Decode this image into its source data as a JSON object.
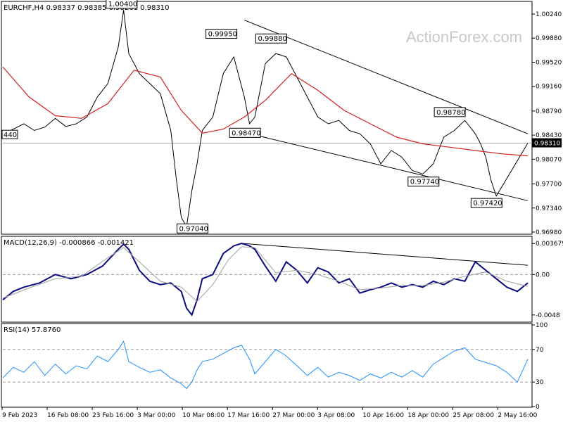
{
  "watermark": "ActionForex.com",
  "chart_data": [
    {
      "type": "candlestick",
      "title": "EURCHF,H4  0.98337 0.98385 0.98261 0.98310",
      "ylim": [
        0.9698,
        1.0024
      ],
      "y_ticks": [
        "1.00240",
        "0.99880",
        "0.99520",
        "0.99160",
        "0.98790",
        "0.98430",
        "0.98070",
        "0.97700",
        "0.97340",
        "0.96980"
      ],
      "last_price": "0.98310",
      "left_cut_label": "440",
      "annotations": [
        {
          "text": "1.00400",
          "x": 0.225,
          "y": 1.004
        },
        {
          "text": "0.99950",
          "x": 0.415,
          "y": 0.9995
        },
        {
          "text": "0.99880",
          "x": 0.51,
          "y": 0.9988
        },
        {
          "text": "0.98470",
          "x": 0.46,
          "y": 0.9847
        },
        {
          "text": "0.97040",
          "x": 0.36,
          "y": 0.9704
        },
        {
          "text": "0.98780",
          "x": 0.85,
          "y": 0.9878
        },
        {
          "text": "0.97740",
          "x": 0.8,
          "y": 0.9774
        },
        {
          "text": "0.97420",
          "x": 0.92,
          "y": 0.9742
        }
      ],
      "series": [
        {
          "name": "",
          "kind": "close",
          "color": "#000000",
          "x": [
            0,
            0.02,
            0.04,
            0.06,
            0.08,
            0.1,
            0.12,
            0.14,
            0.16,
            0.18,
            0.2,
            0.22,
            0.23,
            0.24,
            0.26,
            0.28,
            0.3,
            0.32,
            0.33,
            0.34,
            0.35,
            0.36,
            0.37,
            0.38,
            0.4,
            0.42,
            0.44,
            0.46,
            0.47,
            0.48,
            0.5,
            0.52,
            0.54,
            0.56,
            0.58,
            0.6,
            0.62,
            0.64,
            0.66,
            0.68,
            0.7,
            0.72,
            0.74,
            0.76,
            0.78,
            0.8,
            0.82,
            0.84,
            0.86,
            0.88,
            0.9,
            0.91,
            0.92,
            0.93,
            0.94,
            0.95,
            1.0
          ],
          "y": [
            0.9844,
            0.9852,
            0.986,
            0.985,
            0.9855,
            0.9868,
            0.9856,
            0.986,
            0.987,
            0.99,
            0.992,
            0.9975,
            1.003,
            0.9965,
            0.9935,
            0.992,
            0.9905,
            0.985,
            0.978,
            0.972,
            0.9706,
            0.976,
            0.98,
            0.985,
            0.987,
            0.9935,
            0.996,
            0.99,
            0.986,
            0.987,
            0.995,
            0.9965,
            0.996,
            0.993,
            0.99,
            0.987,
            0.986,
            0.9865,
            0.985,
            0.9845,
            0.983,
            0.98,
            0.982,
            0.981,
            0.979,
            0.9785,
            0.98,
            0.984,
            0.985,
            0.9865,
            0.9845,
            0.983,
            0.981,
            0.9775,
            0.9752,
            0.9765,
            0.9831
          ]
        },
        {
          "name": "",
          "kind": "moving average",
          "color": "#d22020",
          "x": [
            0,
            0.05,
            0.1,
            0.15,
            0.2,
            0.25,
            0.3,
            0.34,
            0.38,
            0.42,
            0.46,
            0.5,
            0.55,
            0.6,
            0.65,
            0.7,
            0.75,
            0.8,
            0.85,
            0.9,
            0.95,
            1.0
          ],
          "y": [
            0.9945,
            0.99,
            0.9872,
            0.9868,
            0.989,
            0.994,
            0.993,
            0.988,
            0.9846,
            0.9852,
            0.987,
            0.9895,
            0.9935,
            0.991,
            0.988,
            0.986,
            0.984,
            0.983,
            0.9825,
            0.982,
            0.9815,
            0.9812
          ]
        }
      ],
      "trendlines": [
        {
          "x": [
            0.46,
            1.0
          ],
          "y": [
            1.0015,
            0.9845
          ]
        },
        {
          "x": [
            0.46,
            1.0
          ],
          "y": [
            0.9847,
            0.9745
          ]
        }
      ]
    },
    {
      "type": "line",
      "title": "MACD(12,26,9) -0.000866 -0.001421",
      "ylim": [
        -0.0054,
        0.0042
      ],
      "y_ticks": [
        "0.003679",
        "0.00",
        "-0.0048"
      ],
      "zero_label": "0.00",
      "series": [
        {
          "name": "",
          "kind": "macd",
          "color": "#0a0a80",
          "x": [
            0,
            0.02,
            0.04,
            0.07,
            0.1,
            0.13,
            0.16,
            0.19,
            0.22,
            0.23,
            0.24,
            0.26,
            0.28,
            0.3,
            0.32,
            0.34,
            0.35,
            0.36,
            0.37,
            0.38,
            0.4,
            0.42,
            0.44,
            0.455,
            0.47,
            0.48,
            0.5,
            0.52,
            0.54,
            0.56,
            0.58,
            0.6,
            0.62,
            0.64,
            0.66,
            0.68,
            0.7,
            0.72,
            0.74,
            0.76,
            0.78,
            0.8,
            0.82,
            0.84,
            0.86,
            0.88,
            0.9,
            0.92,
            0.94,
            0.96,
            0.98,
            1.0
          ],
          "y": [
            -0.003,
            -0.002,
            -0.0015,
            -0.001,
            0.0,
            -0.0005,
            0.0,
            0.001,
            0.003,
            0.0036,
            0.003,
            0.0005,
            -0.0008,
            -0.0012,
            -0.001,
            -0.002,
            -0.004,
            -0.0048,
            -0.003,
            -0.0005,
            0.0,
            0.0025,
            0.0034,
            0.0037,
            0.0034,
            0.003,
            0.001,
            -0.0008,
            0.0015,
            0.0005,
            -0.001,
            0.0008,
            0.0003,
            -0.001,
            -0.0005,
            -0.0022,
            -0.0018,
            -0.0015,
            -0.001,
            -0.0015,
            -0.0012,
            -0.0015,
            -0.0008,
            -0.0012,
            -0.0005,
            -0.0008,
            0.0015,
            0.0005,
            -0.0005,
            -0.0015,
            -0.002,
            -0.001
          ]
        },
        {
          "name": "",
          "kind": "signal",
          "color": "#a0a0a0",
          "x": [
            0,
            0.05,
            0.1,
            0.15,
            0.2,
            0.23,
            0.26,
            0.3,
            0.34,
            0.37,
            0.4,
            0.43,
            0.455,
            0.48,
            0.52,
            0.56,
            0.6,
            0.64,
            0.68,
            0.72,
            0.76,
            0.8,
            0.84,
            0.88,
            0.92,
            0.96,
            1.0
          ],
          "y": [
            -0.0028,
            -0.0016,
            -0.0005,
            -0.0002,
            0.002,
            0.0032,
            0.0015,
            -0.0008,
            -0.0015,
            -0.0032,
            -0.0012,
            0.0018,
            0.0033,
            0.0032,
            0.0002,
            0.0005,
            0.0,
            -0.0008,
            -0.0018,
            -0.0016,
            -0.0013,
            -0.0013,
            -0.0009,
            -0.0002,
            0.0003,
            -0.0008,
            -0.0014
          ]
        }
      ],
      "trendlines": [
        {
          "x": [
            0.455,
            1.0
          ],
          "y": [
            0.0037,
            0.0011
          ]
        }
      ]
    },
    {
      "type": "line",
      "title": "RSI(14) 57.8760",
      "ylim": [
        0,
        100
      ],
      "y_ticks": [
        "100",
        "70",
        "30",
        "0"
      ],
      "series": [
        {
          "name": "",
          "kind": "rsi",
          "color": "#1e90ff",
          "x": [
            0,
            0.02,
            0.04,
            0.06,
            0.08,
            0.1,
            0.12,
            0.14,
            0.16,
            0.18,
            0.2,
            0.22,
            0.23,
            0.24,
            0.26,
            0.28,
            0.3,
            0.32,
            0.34,
            0.35,
            0.36,
            0.37,
            0.38,
            0.4,
            0.42,
            0.44,
            0.455,
            0.47,
            0.48,
            0.5,
            0.52,
            0.54,
            0.56,
            0.58,
            0.6,
            0.62,
            0.64,
            0.66,
            0.68,
            0.7,
            0.72,
            0.74,
            0.76,
            0.78,
            0.8,
            0.82,
            0.84,
            0.86,
            0.88,
            0.9,
            0.92,
            0.94,
            0.96,
            0.98,
            1.0
          ],
          "y": [
            35,
            48,
            42,
            55,
            38,
            52,
            40,
            50,
            46,
            62,
            55,
            70,
            80,
            55,
            48,
            42,
            45,
            35,
            28,
            22,
            30,
            45,
            55,
            58,
            65,
            72,
            75,
            58,
            40,
            55,
            70,
            62,
            50,
            38,
            48,
            36,
            42,
            38,
            32,
            40,
            35,
            42,
            36,
            44,
            36,
            52,
            60,
            68,
            72,
            58,
            54,
            50,
            42,
            30,
            58
          ]
        }
      ]
    }
  ],
  "x_axis_labels": [
    "9 Feb 2023",
    "16 Feb 08:00",
    "23 Feb 16:00",
    "3 Mar 00:00",
    "10 Mar 08:00",
    "17 Mar 16:00",
    "27 Mar 00:00",
    "3 Apr 08:00",
    "10 Apr 16:00",
    "18 Apr 00:00",
    "25 Apr 08:00",
    "2 May 16:00"
  ],
  "colors": {
    "price": "#000000",
    "ma": "#d22020",
    "macd": "#0a0a80",
    "signal": "#a0a0a0",
    "rsi": "#1e90ff"
  }
}
